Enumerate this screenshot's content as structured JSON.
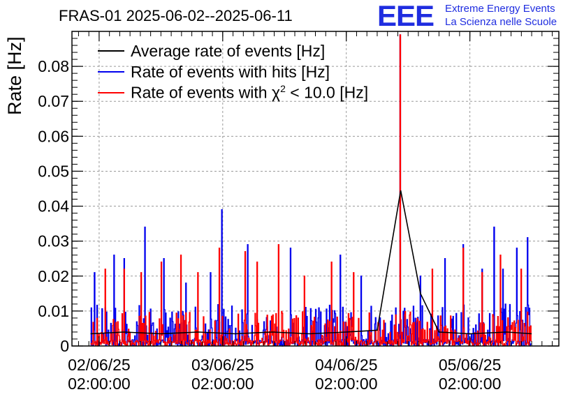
{
  "title": "FRAS-01 2025-06-02--2025-06-11",
  "logo": {
    "text": "EEE",
    "line1": "Extreme Energy Events",
    "line2": "La Scienza nelle Scuole",
    "color": "#1f2de0"
  },
  "chart_data": {
    "type": "line",
    "title": "FRAS-01 2025-06-02--2025-06-11",
    "xlabel": "",
    "ylabel": "Rate [Hz]",
    "ylim": [
      0,
      0.09
    ],
    "y_ticks": [
      0,
      0.01,
      0.02,
      0.03,
      0.04,
      0.05,
      0.06,
      0.07,
      0.08
    ],
    "y_tick_labels": [
      "0",
      "0.01",
      "0.02",
      "0.03",
      "0.04",
      "0.05",
      "0.06",
      "0.07",
      "0.08"
    ],
    "x_unit": "days since 02/06/25 02:00:00",
    "xlim": [
      -0.22,
      3.72
    ],
    "x_ticks": [
      0,
      1,
      2,
      3
    ],
    "x_tick_labels": [
      [
        "02/06/25",
        "02:00:00"
      ],
      [
        "03/06/25",
        "02:00:00"
      ],
      [
        "04/06/25",
        "02:00:00"
      ],
      [
        "05/06/25",
        "02:00:00"
      ]
    ],
    "grid": true,
    "legend_position": "top-left",
    "series": [
      {
        "name": "Average rate of events [Hz]",
        "color": "#000000",
        "x": [
          -0.07,
          0.2,
          0.5,
          0.8,
          1.1,
          1.4,
          1.7,
          2.0,
          2.25,
          2.44,
          2.6,
          2.75,
          3.0,
          3.3,
          3.5
        ],
        "values": [
          0.0035,
          0.004,
          0.0035,
          0.004,
          0.0035,
          0.004,
          0.0035,
          0.004,
          0.0045,
          0.0445,
          0.015,
          0.004,
          0.0035,
          0.004,
          0.0035
        ]
      },
      {
        "name": "Rate of events with hits [Hz]",
        "color": "#0000ee",
        "x_start": -0.07,
        "x_end": 3.5,
        "noise_level": 0.012,
        "spikes": [
          {
            "x": -0.04,
            "y": 0.021
          },
          {
            "x": 0.12,
            "y": 0.026
          },
          {
            "x": 0.2,
            "y": 0.025
          },
          {
            "x": 0.37,
            "y": 0.034
          },
          {
            "x": 0.52,
            "y": 0.025
          },
          {
            "x": 0.7,
            "y": 0.018
          },
          {
            "x": 0.9,
            "y": 0.021
          },
          {
            "x": 0.99,
            "y": 0.039
          },
          {
            "x": 1.2,
            "y": 0.029
          },
          {
            "x": 1.55,
            "y": 0.028
          },
          {
            "x": 1.95,
            "y": 0.026
          },
          {
            "x": 2.12,
            "y": 0.02
          },
          {
            "x": 2.44,
            "y": 0.089
          },
          {
            "x": 2.6,
            "y": 0.02
          },
          {
            "x": 2.8,
            "y": 0.025
          },
          {
            "x": 2.95,
            "y": 0.029
          },
          {
            "x": 3.1,
            "y": 0.022
          },
          {
            "x": 3.2,
            "y": 0.034
          },
          {
            "x": 3.27,
            "y": 0.022
          },
          {
            "x": 3.38,
            "y": 0.028
          },
          {
            "x": 3.47,
            "y": 0.031
          }
        ]
      },
      {
        "name": "Rate of events with χ² < 10.0 [Hz]",
        "color": "#ff0000",
        "x_start": -0.07,
        "x_end": 3.5,
        "noise_level": 0.01,
        "spikes": [
          {
            "x": 0.05,
            "y": 0.022
          },
          {
            "x": 0.2,
            "y": 0.022
          },
          {
            "x": 0.34,
            "y": 0.021
          },
          {
            "x": 0.5,
            "y": 0.024
          },
          {
            "x": 0.66,
            "y": 0.026
          },
          {
            "x": 0.8,
            "y": 0.021
          },
          {
            "x": 0.97,
            "y": 0.028
          },
          {
            "x": 1.18,
            "y": 0.027
          },
          {
            "x": 1.28,
            "y": 0.024
          },
          {
            "x": 1.45,
            "y": 0.029
          },
          {
            "x": 1.66,
            "y": 0.02
          },
          {
            "x": 1.88,
            "y": 0.024
          },
          {
            "x": 2.06,
            "y": 0.021
          },
          {
            "x": 2.44,
            "y": 0.089
          },
          {
            "x": 2.7,
            "y": 0.022
          },
          {
            "x": 2.95,
            "y": 0.028
          },
          {
            "x": 3.1,
            "y": 0.021
          },
          {
            "x": 3.25,
            "y": 0.026
          },
          {
            "x": 3.42,
            "y": 0.022
          }
        ]
      }
    ],
    "legend": [
      {
        "label": "Average rate of events [Hz]",
        "color": "#000000"
      },
      {
        "label": "Rate of events with hits [Hz]",
        "color": "#0000ee"
      },
      {
        "label": "Rate of events with χ² < 10.0 [Hz]",
        "color": "#ff0000"
      }
    ]
  }
}
